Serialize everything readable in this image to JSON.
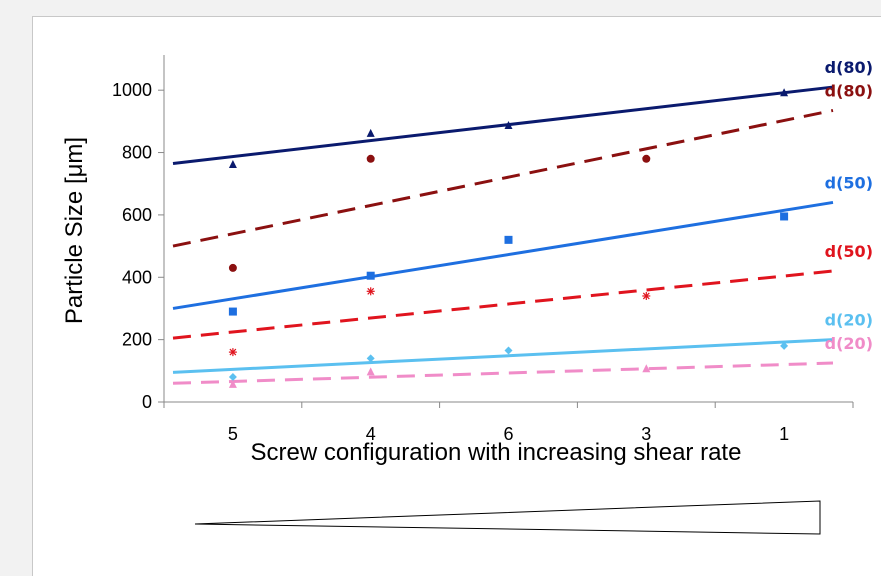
{
  "chart_data": {
    "type": "scatter",
    "xlabel": "Screw configuration with increasing shear rate",
    "ylabel": "Particle Size [μm]",
    "categories": [
      "5",
      "4",
      "6",
      "3",
      "1"
    ],
    "ylim": [
      0,
      1100
    ],
    "yticks": [
      0,
      200,
      400,
      600,
      800,
      1000
    ],
    "grid": false,
    "series": [
      {
        "name": "d(80)",
        "color": "#0a1a6e",
        "marker": "triangle",
        "line": "solid",
        "values": [
          760,
          860,
          885,
          null,
          990
        ],
        "trend": [
          765,
          1010
        ]
      },
      {
        "name": "d(80)",
        "color": "#8b1010",
        "marker": "circle",
        "line": "dashed",
        "values": [
          430,
          780,
          null,
          780,
          null
        ],
        "trend": [
          500,
          935
        ]
      },
      {
        "name": "d(50)",
        "color": "#1e6fe0",
        "marker": "square",
        "line": "solid",
        "values": [
          290,
          405,
          520,
          null,
          595
        ],
        "trend": [
          300,
          640
        ]
      },
      {
        "name": "d(50)",
        "color": "#e0141e",
        "marker": "star",
        "line": "dashed",
        "values": [
          160,
          355,
          null,
          340,
          null
        ],
        "trend": [
          205,
          420
        ]
      },
      {
        "name": "d(20)",
        "color": "#5bc0f0",
        "marker": "diamond",
        "line": "solid",
        "values": [
          80,
          140,
          165,
          null,
          180
        ],
        "trend": [
          95,
          200
        ]
      },
      {
        "name": "d(20)",
        "color": "#f08cc8",
        "marker": "triangle",
        "line": "dashed",
        "values": [
          55,
          95,
          null,
          105,
          null
        ],
        "trend": [
          60,
          125
        ]
      }
    ]
  }
}
